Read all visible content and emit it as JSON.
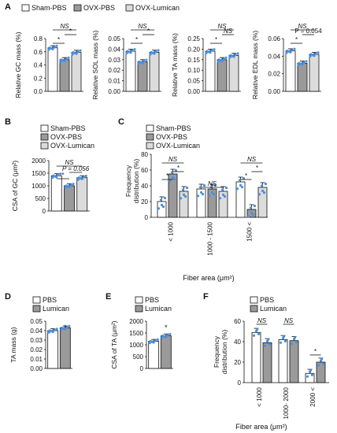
{
  "colors": {
    "white_bar": "#ffffff",
    "dark_bar": "#9a9a9a",
    "light_bar": "#dcdcdc",
    "dots": "#4a90e2",
    "stroke": "#111111"
  },
  "panels": {
    "A": {
      "letter": "A",
      "legend": [
        "Sham-PBS",
        "OVX-PBS",
        "OVX-Lumican"
      ]
    },
    "B": {
      "letter": "B",
      "legend": [
        "Sham-PBS",
        "OVX-PBS",
        "OVX-Lumican"
      ]
    },
    "C": {
      "letter": "C",
      "legend": [
        "Sham-PBS",
        "OVX-PBS",
        "OVX-Lumican"
      ],
      "xlabel": "Fiber area (μm²)"
    },
    "D": {
      "letter": "D",
      "legend": [
        "PBS",
        "Lumican"
      ]
    },
    "E": {
      "letter": "E",
      "legend": [
        "PBS",
        "Lumican"
      ]
    },
    "F": {
      "letter": "F",
      "legend": [
        "PBS",
        "Lumican"
      ],
      "xlabel": "Fiber area (μm²)"
    }
  },
  "chart_data": [
    {
      "id": "A1",
      "type": "bar",
      "ylabel": "Relative GC mass (%)",
      "yticks": [
        "0.0",
        "0.2",
        "0.4",
        "0.6",
        "0.8"
      ],
      "ylim": [
        0,
        0.8
      ],
      "series": [
        {
          "name": "Sham-PBS",
          "values": [
            0.66
          ]
        },
        {
          "name": "OVX-PBS",
          "values": [
            0.48
          ]
        },
        {
          "name": "OVX-Lumican",
          "values": [
            0.59
          ]
        }
      ],
      "annotations": [
        "NS",
        "*",
        "*"
      ]
    },
    {
      "id": "A2",
      "type": "bar",
      "ylabel": "Relative SOL mass (%)",
      "yticks": [
        "0.00",
        "0.01",
        "0.02",
        "0.03",
        "0.04",
        "0.05"
      ],
      "ylim": [
        0,
        0.05
      ],
      "series": [
        {
          "name": "Sham-PBS",
          "values": [
            0.038
          ]
        },
        {
          "name": "OVX-PBS",
          "values": [
            0.028
          ]
        },
        {
          "name": "OVX-Lumican",
          "values": [
            0.037
          ]
        }
      ],
      "annotations": [
        "NS",
        "*",
        "*"
      ]
    },
    {
      "id": "A3",
      "type": "bar",
      "ylabel": "Relative TA mass (%)",
      "yticks": [
        "0.00",
        "0.05",
        "0.10",
        "0.15",
        "0.20",
        "0.25"
      ],
      "ylim": [
        0,
        0.25
      ],
      "series": [
        {
          "name": "Sham-PBS",
          "values": [
            0.19
          ]
        },
        {
          "name": "OVX-PBS",
          "values": [
            0.15
          ]
        },
        {
          "name": "OVX-Lumican",
          "values": [
            0.17
          ]
        }
      ],
      "annotations": [
        "NS",
        "*",
        "NS"
      ]
    },
    {
      "id": "A4",
      "type": "bar",
      "ylabel": "Relative EDL mass (%)",
      "yticks": [
        "0.00",
        "0.02",
        "0.04",
        "0.06"
      ],
      "ylim": [
        0,
        0.06
      ],
      "series": [
        {
          "name": "Sham-PBS",
          "values": [
            0.046
          ]
        },
        {
          "name": "OVX-PBS",
          "values": [
            0.032
          ]
        },
        {
          "name": "OVX-Lumican",
          "values": [
            0.042
          ]
        }
      ],
      "annotations": [
        "NS",
        "*",
        "P = 0.054"
      ]
    },
    {
      "id": "B",
      "type": "bar",
      "ylabel": "CSA of GC (μm²)",
      "yticks": [
        "0",
        "500",
        "1000",
        "1500",
        "2000"
      ],
      "ylim": [
        0,
        2000
      ],
      "series": [
        {
          "name": "Sham-PBS",
          "values": [
            1400
          ]
        },
        {
          "name": "OVX-PBS",
          "values": [
            1000
          ]
        },
        {
          "name": "OVX-Lumican",
          "values": [
            1320
          ]
        }
      ],
      "annotations": [
        "NS",
        "*",
        "P = 0.056"
      ]
    },
    {
      "id": "C",
      "type": "bar",
      "ylabel": "Frequency distribution (%)",
      "xlabel": "Fiber area (μm²)",
      "yticks": [
        "0",
        "20",
        "40",
        "60",
        "80"
      ],
      "ylim": [
        0,
        80
      ],
      "categories": [
        "< 1000",
        "1000 - 1500",
        "1500 <"
      ],
      "series": [
        {
          "name": "Sham-PBS",
          "values": [
            20,
            36,
            45
          ]
        },
        {
          "name": "OVX-PBS",
          "values": [
            55,
            36,
            10
          ]
        },
        {
          "name": "OVX-Lumican",
          "values": [
            33,
            33,
            38
          ]
        }
      ],
      "annotations": [
        "NS",
        "*",
        "*",
        "NS",
        "NS",
        "*",
        "*"
      ]
    },
    {
      "id": "D",
      "type": "bar",
      "ylabel": "TA mass (g)",
      "yticks": [
        "0.00",
        "0.01",
        "0.02",
        "0.03",
        "0.04",
        "0.05"
      ],
      "ylim": [
        0,
        0.05
      ],
      "series": [
        {
          "name": "PBS",
          "values": [
            0.04
          ]
        },
        {
          "name": "Lumican",
          "values": [
            0.043
          ]
        }
      ],
      "annotations": [
        "*"
      ]
    },
    {
      "id": "E",
      "type": "bar",
      "ylabel": "CSA of TA (μm²)",
      "yticks": [
        "0",
        "500",
        "1000",
        "1500",
        "2000"
      ],
      "ylim": [
        0,
        2000
      ],
      "series": [
        {
          "name": "PBS",
          "values": [
            1150
          ]
        },
        {
          "name": "Lumican",
          "values": [
            1380
          ]
        }
      ],
      "annotations": [
        "*"
      ]
    },
    {
      "id": "F",
      "type": "bar",
      "ylabel": "Frequency distribution (%)",
      "xlabel": "Fiber area (μm²)",
      "yticks": [
        "0",
        "20",
        "40",
        "60"
      ],
      "ylim": [
        0,
        60
      ],
      "categories": [
        "< 1000",
        "1000- 2000",
        "2000 <"
      ],
      "series": [
        {
          "name": "PBS",
          "values": [
            49,
            42,
            9
          ]
        },
        {
          "name": "Lumican",
          "values": [
            39,
            41,
            20
          ]
        }
      ],
      "annotations": [
        "NS",
        "NS",
        "*"
      ]
    }
  ]
}
